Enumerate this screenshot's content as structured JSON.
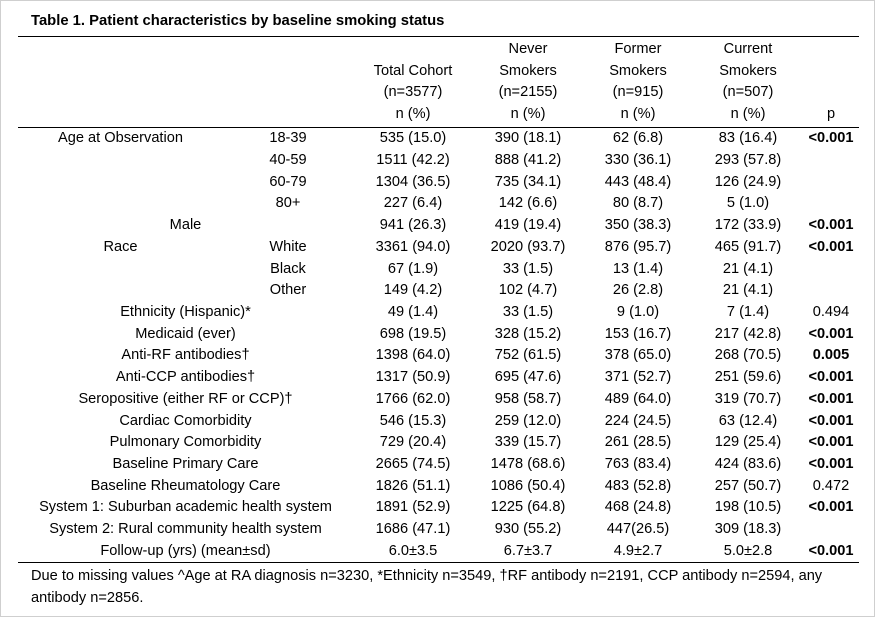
{
  "title": "Table 1. Patient characteristics by baseline smoking status",
  "table": {
    "header": {
      "columns": [
        {
          "lines": [
            "Total Cohort",
            "(n=3577)",
            "n (%)"
          ]
        },
        {
          "lines": [
            "Never",
            "Smokers",
            "(n=2155)",
            "n (%)"
          ]
        },
        {
          "lines": [
            "Former",
            "Smokers",
            "(n=915)",
            "n (%)"
          ]
        },
        {
          "lines": [
            "Current",
            "Smokers",
            "(n=507)",
            "n (%)"
          ]
        },
        {
          "lines": [
            "p"
          ]
        }
      ]
    },
    "rows": [
      {
        "label": "Age at Observation",
        "sub": "18-39",
        "total": "535 (15.0)",
        "never": "390 (18.1)",
        "former": "62 (6.8)",
        "current": "83 (16.4)",
        "p": "<0.001",
        "p_bold": true
      },
      {
        "label": "",
        "sub": "40-59",
        "total": "1511 (42.2)",
        "never": "888 (41.2)",
        "former": "330 (36.1)",
        "current": "293 (57.8)",
        "p": "",
        "p_bold": false
      },
      {
        "label": "",
        "sub": "60-79",
        "total": "1304 (36.5)",
        "never": "735 (34.1)",
        "former": "443 (48.4)",
        "current": "126 (24.9)",
        "p": "",
        "p_bold": false
      },
      {
        "label": "",
        "sub": "80+",
        "total": "227 (6.4)",
        "never": "142 (6.6)",
        "former": "80 (8.7)",
        "current": "5 (1.0)",
        "p": "",
        "p_bold": false
      },
      {
        "label": "Male",
        "sub": "",
        "total": "941 (26.3)",
        "never": "419 (19.4)",
        "former": "350 (38.3)",
        "current": "172 (33.9)",
        "p": "<0.001",
        "p_bold": true
      },
      {
        "label": "Race",
        "sub": "White",
        "total": "3361 (94.0)",
        "never": "2020 (93.7)",
        "former": "876 (95.7)",
        "current": "465 (91.7)",
        "p": "<0.001",
        "p_bold": true
      },
      {
        "label": "",
        "sub": "Black",
        "total": "67 (1.9)",
        "never": "33 (1.5)",
        "former": "13 (1.4)",
        "current": "21 (4.1)",
        "p": "",
        "p_bold": false
      },
      {
        "label": "",
        "sub": "Other",
        "total": "149 (4.2)",
        "never": "102 (4.7)",
        "former": "26 (2.8)",
        "current": "21 (4.1)",
        "p": "",
        "p_bold": false
      },
      {
        "label": "Ethnicity (Hispanic)*",
        "sub": "",
        "total": "49 (1.4)",
        "never": "33 (1.5)",
        "former": "9 (1.0)",
        "current": "7 (1.4)",
        "p": "0.494",
        "p_bold": false
      },
      {
        "label": "Medicaid (ever)",
        "sub": "",
        "total": "698 (19.5)",
        "never": "328 (15.2)",
        "former": "153 (16.7)",
        "current": "217 (42.8)",
        "p": "<0.001",
        "p_bold": true
      },
      {
        "label": "Anti-RF antibodies†",
        "sub": "",
        "total": "1398 (64.0)",
        "never": "752 (61.5)",
        "former": "378 (65.0)",
        "current": "268 (70.5)",
        "p": "0.005",
        "p_bold": true
      },
      {
        "label": "Anti-CCP antibodies†",
        "sub": "",
        "total": "1317 (50.9)",
        "never": "695 (47.6)",
        "former": "371 (52.7)",
        "current": "251 (59.6)",
        "p": "<0.001",
        "p_bold": true
      },
      {
        "label": "Seropositive (either RF or CCP)†",
        "sub": "",
        "total": "1766 (62.0)",
        "never": "958 (58.7)",
        "former": "489 (64.0)",
        "current": "319 (70.7)",
        "p": "<0.001",
        "p_bold": true
      },
      {
        "label": "Cardiac Comorbidity",
        "sub": "",
        "total": "546 (15.3)",
        "never": "259 (12.0)",
        "former": "224 (24.5)",
        "current": "63 (12.4)",
        "p": "<0.001",
        "p_bold": true
      },
      {
        "label": "Pulmonary Comorbidity",
        "sub": "",
        "total": "729 (20.4)",
        "never": "339 (15.7)",
        "former": "261 (28.5)",
        "current": "129 (25.4)",
        "p": "<0.001",
        "p_bold": true
      },
      {
        "label": "Baseline Primary Care",
        "sub": "",
        "total": "2665 (74.5)",
        "never": "1478 (68.6)",
        "former": "763 (83.4)",
        "current": "424 (83.6)",
        "p": "<0.001",
        "p_bold": true
      },
      {
        "label": "Baseline Rheumatology Care",
        "sub": "",
        "total": "1826 (51.1)",
        "never": "1086 (50.4)",
        "former": "483 (52.8)",
        "current": "257 (50.7)",
        "p": "0.472",
        "p_bold": false
      },
      {
        "label": "System 1: Suburban academic health system",
        "sub": "",
        "total": "1891 (52.9)",
        "never": "1225 (64.8)",
        "former": "468 (24.8)",
        "current": "198 (10.5)",
        "p": "<0.001",
        "p_bold": true
      },
      {
        "label": "System 2: Rural community health system",
        "sub": "",
        "total": "1686 (47.1)",
        "never": "930 (55.2)",
        "former": "447(26.5)",
        "current": "309 (18.3)",
        "p": "",
        "p_bold": false
      },
      {
        "label": "Follow-up (yrs) (mean±sd)",
        "sub": "",
        "total": "6.0±3.5",
        "never": "6.7±3.7",
        "former": "4.9±2.7",
        "current": "5.0±2.8",
        "p": "<0.001",
        "p_bold": true
      }
    ],
    "footnote": "Due to missing values ^Age at RA diagnosis n=3230, *Ethnicity n=3549, †RF antibody n=2191, CCP antibody n=2594, any antibody n=2856."
  }
}
